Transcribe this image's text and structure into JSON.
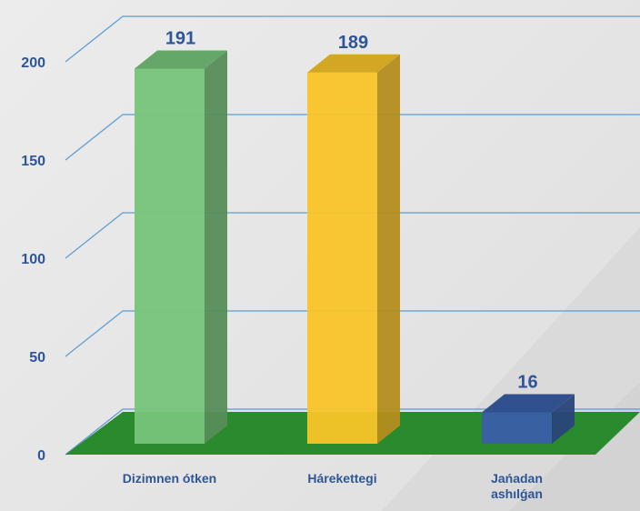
{
  "chart_data": {
    "type": "bar3d",
    "categories": [
      "Dizimnen ótken",
      "Hárekettegi",
      "Jańadan ashılǵan"
    ],
    "values": [
      191,
      189,
      16
    ],
    "colors": [
      "#77c47a",
      "#f8c428",
      "#3a5ea8"
    ],
    "ylim": [
      0,
      200
    ],
    "yticks": [
      0,
      50,
      100,
      150,
      200
    ],
    "grid": true
  }
}
